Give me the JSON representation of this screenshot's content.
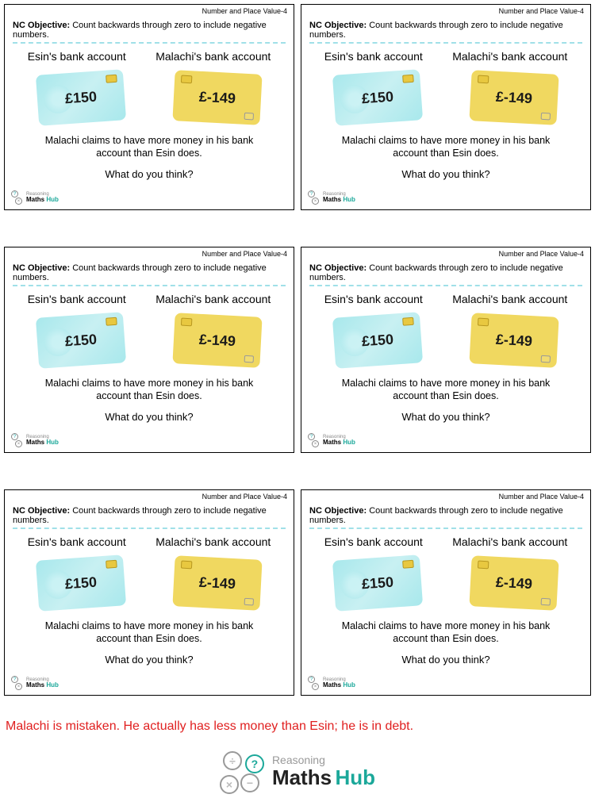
{
  "topic": "Number and Place Value-4",
  "objective_label": "NC Objective:",
  "objective_text": "Count backwards through zero to include negative numbers.",
  "esin_label": "Esin's bank account",
  "malachi_label": "Malachi's bank account",
  "esin_amount": "£150",
  "malachi_amount": "£-149",
  "claim": "Malachi claims to have more money in his bank account than Esin does.",
  "question": "What do you think?",
  "logo_reasoning": "Reasoning",
  "logo_maths": "Maths",
  "logo_hub": "Hub",
  "answer": "Malachi is mistaken. He actually has less money than Esin; he is in debt.",
  "colors": {
    "esin_card": "#a8e8ec",
    "malachi_card": "#f0d860",
    "dash": "#a0e0e8",
    "answer": "#e02020",
    "hub": "#1ba89a"
  }
}
